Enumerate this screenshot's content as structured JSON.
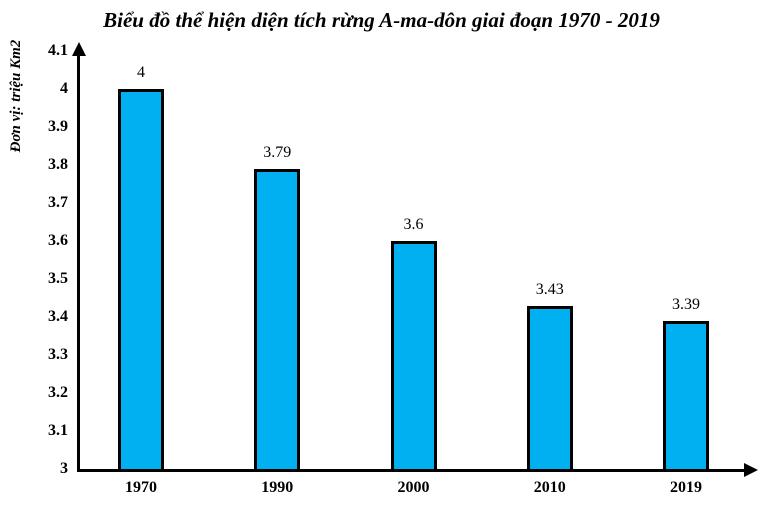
{
  "chart_data": {
    "type": "bar",
    "title": "Biểu đồ thể hiện diện tích rừng A-ma-dôn giai đoạn 1970 - 2019",
    "unit_label": "Đơn vị: triệu Km2",
    "categories": [
      "1970",
      "1990",
      "2000",
      "2010",
      "2019"
    ],
    "values": [
      4,
      3.79,
      3.6,
      3.43,
      3.39
    ],
    "value_labels": [
      "4",
      "3.79",
      "3.6",
      "3.43",
      "3.39"
    ],
    "y_ticks": [
      "3",
      "3.1",
      "3.2",
      "3.3",
      "3.4",
      "3.5",
      "3.6",
      "3.7",
      "3.8",
      "3.9",
      "4",
      "4.1"
    ],
    "ylim": [
      3,
      4.1
    ],
    "grid": false,
    "legend": "none",
    "bar_color": "#00B0F0",
    "bar_border_color": "#000000",
    "axis_color": "#000000",
    "text_color": "#000000",
    "background_color": "#FFFFFF"
  }
}
